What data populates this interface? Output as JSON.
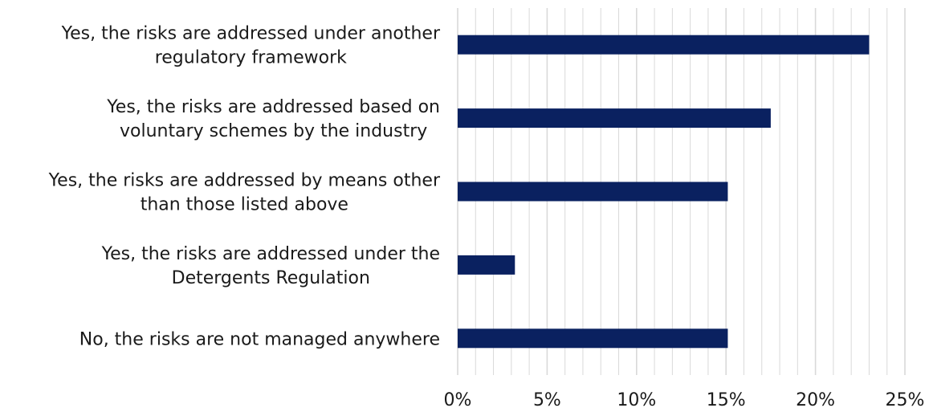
{
  "chart_data": {
    "type": "bar",
    "orientation": "horizontal",
    "categories": [
      [
        "Yes, the risks are addressed under another",
        "regulatory framework"
      ],
      [
        "Yes, the risks are addressed based on",
        "voluntary schemes by the industry"
      ],
      [
        "Yes, the risks are addressed by means other",
        "than those listed above"
      ],
      [
        "Yes, the risks are addressed under the",
        "Detergents Regulation"
      ],
      [
        "No, the risks are not managed anywhere"
      ]
    ],
    "values": [
      0.23,
      0.175,
      0.151,
      0.032,
      0.151
    ],
    "xlim": [
      0,
      0.25
    ],
    "xticks": [
      0,
      0.05,
      0.1,
      0.15,
      0.2,
      0.25
    ],
    "xtick_labels": [
      "0%",
      "5%",
      "10%",
      "15%",
      "20%",
      "25%"
    ],
    "title": "",
    "xlabel": "",
    "ylabel": "",
    "grid": true,
    "legend": "none",
    "colors": {
      "bar": "#0a2160",
      "grid": "#d9d9d9"
    }
  }
}
